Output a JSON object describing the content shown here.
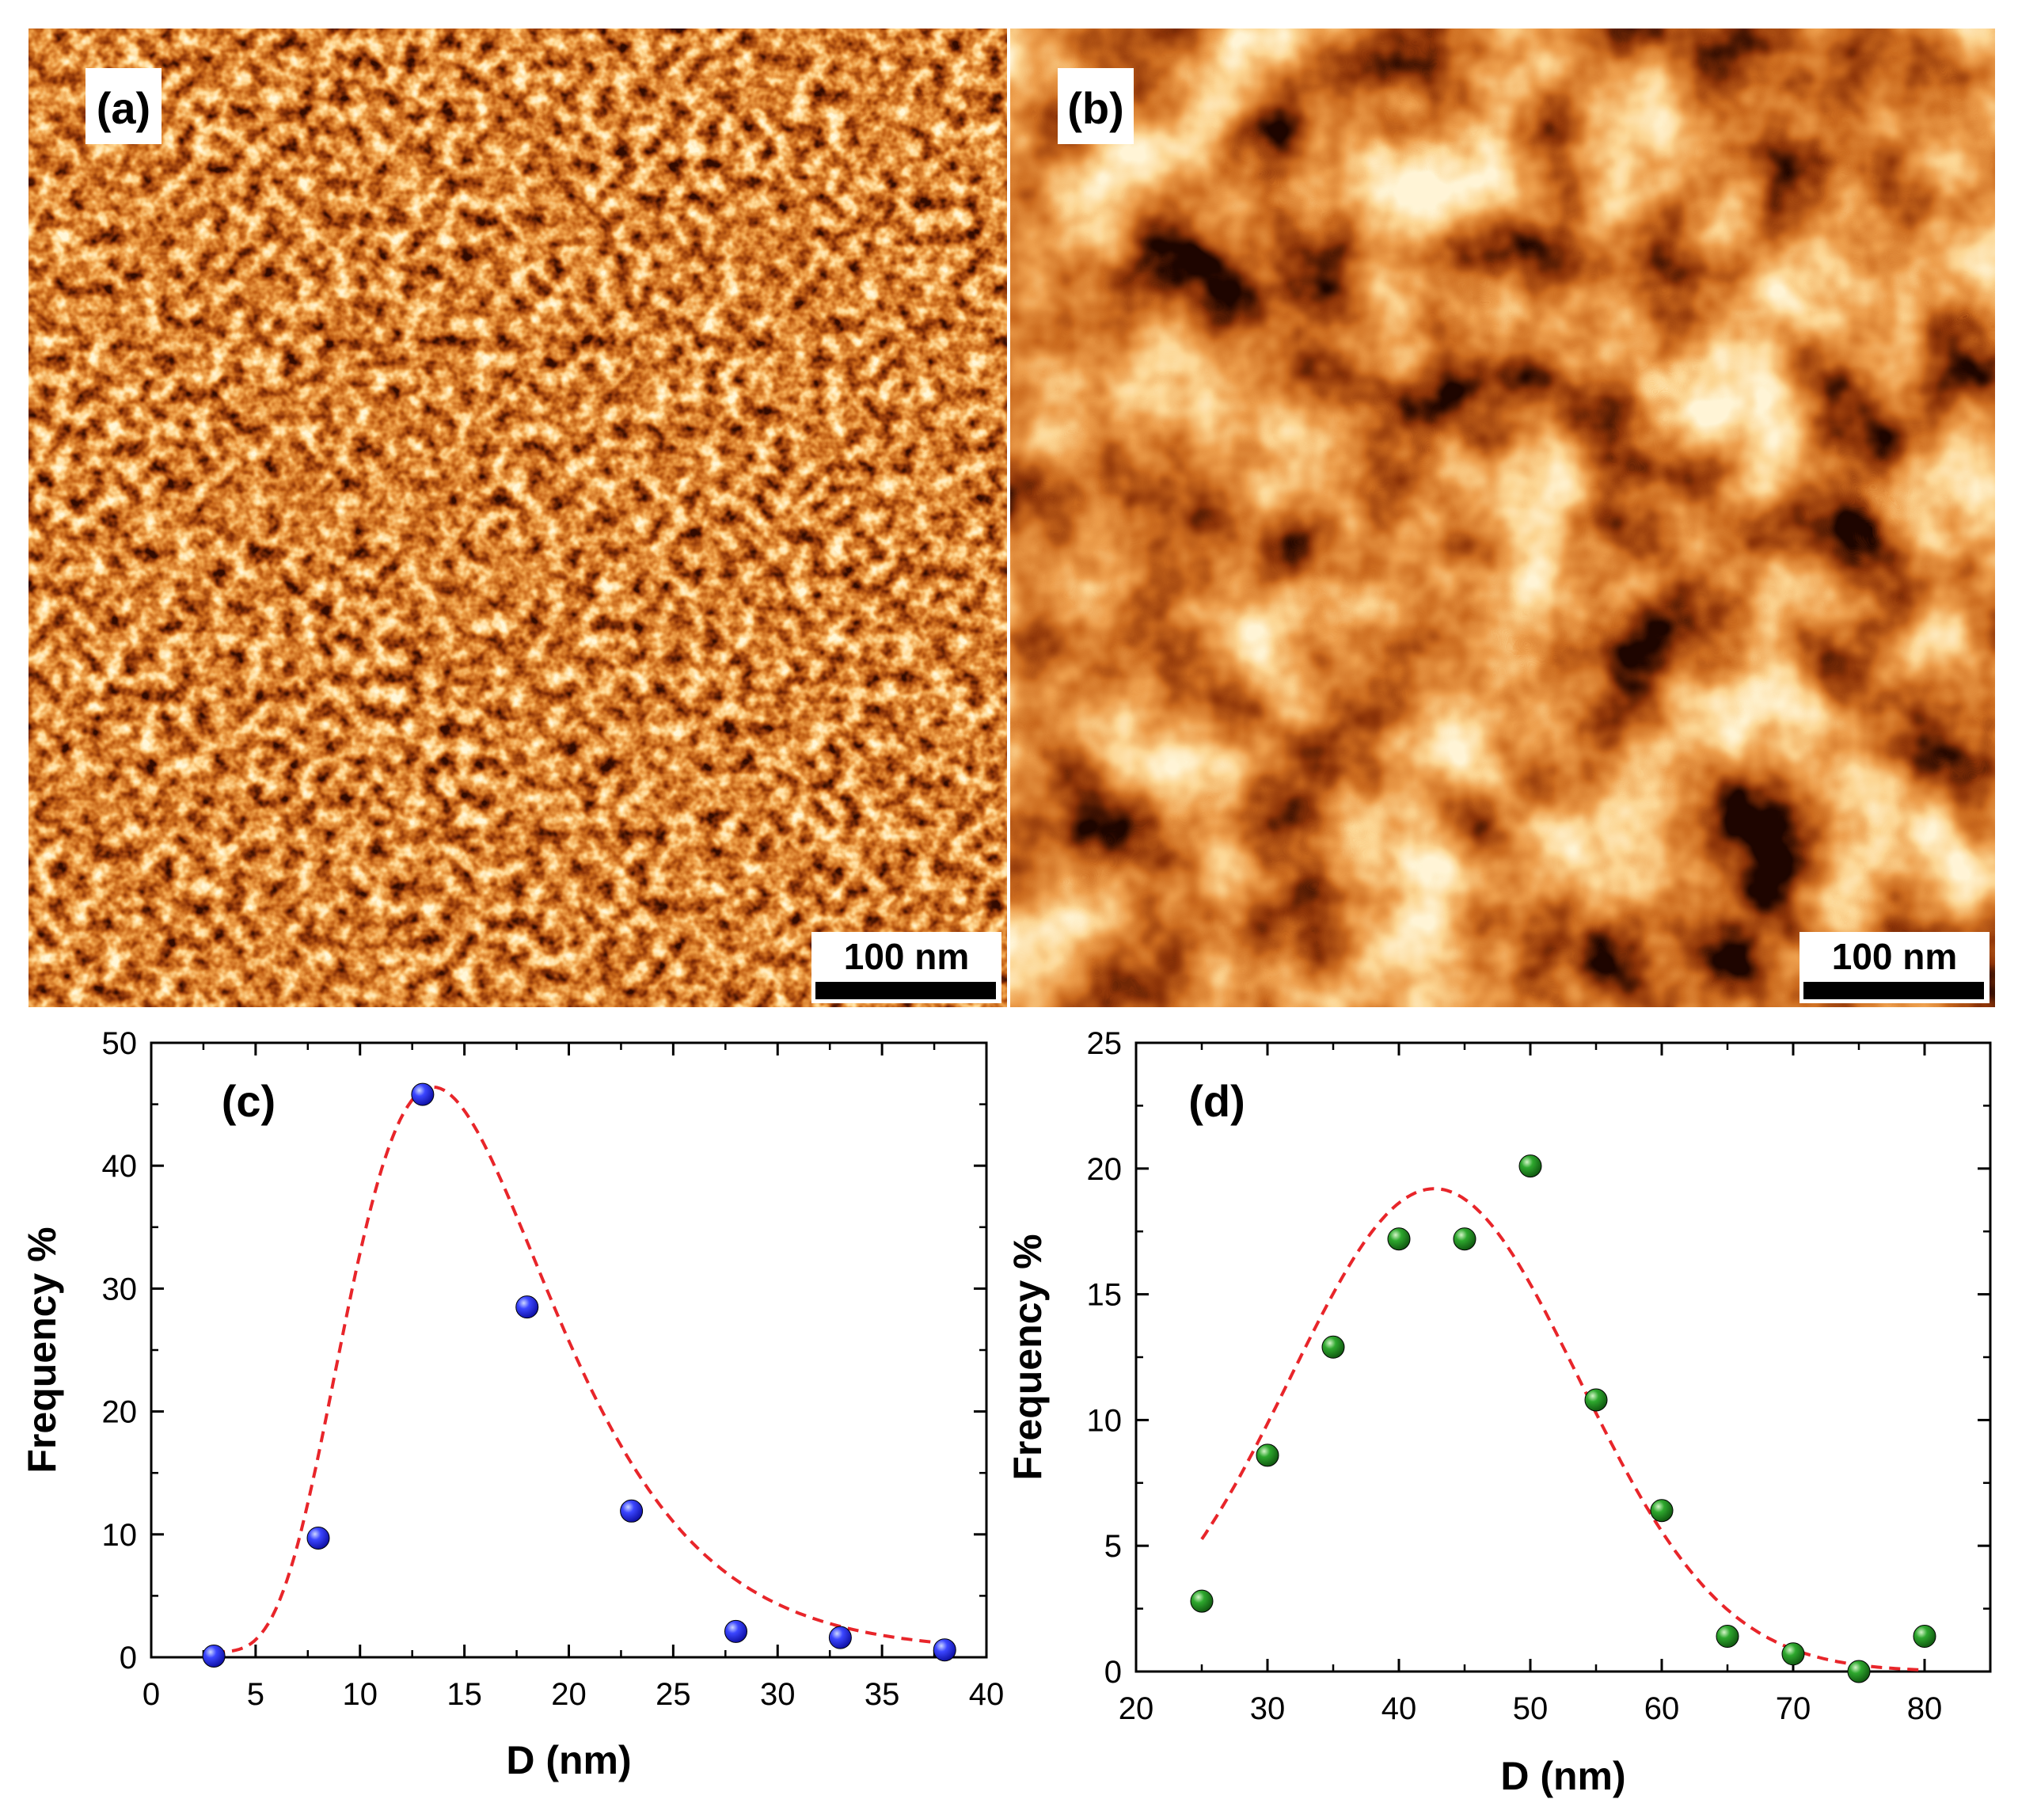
{
  "panels": {
    "a": {
      "label": "(a)",
      "scale_bar": "100 nm"
    },
    "b": {
      "label": "(b)",
      "scale_bar": "100 nm"
    }
  },
  "colors": {
    "afm_dark": "#4a0f02",
    "afm_mid": "#c56a24",
    "afm_light": "#fff2cc",
    "fit_line": "#e8252a",
    "points_c": "#1a1aff",
    "points_d": "#1e8c1e"
  },
  "chart_data": [
    {
      "id": "c",
      "type": "scatter",
      "label": "(c)",
      "xlabel": "D (nm)",
      "ylabel": "Frequency %",
      "xlim": [
        0,
        40
      ],
      "ylim": [
        0,
        50
      ],
      "xticks": [
        0,
        5,
        10,
        15,
        20,
        25,
        30,
        35,
        40
      ],
      "yticks": [
        0,
        10,
        20,
        30,
        40,
        50
      ],
      "points": {
        "x": [
          3,
          8,
          13,
          18,
          23,
          28,
          33,
          38
        ],
        "y": [
          0.1,
          9.7,
          45.8,
          28.5,
          11.9,
          2.1,
          1.6,
          0.6
        ]
      },
      "fit": {
        "type": "lognormal",
        "A": 46.0,
        "xc": 13.5,
        "w": 0.36,
        "y0": 0.4,
        "x_from": 3,
        "x_to": 38,
        "style": "dashed"
      }
    },
    {
      "id": "d",
      "type": "scatter",
      "label": "(d)",
      "xlabel": "D (nm)",
      "ylabel": "Frequency %",
      "xlim": [
        20,
        85
      ],
      "ylim": [
        0,
        25
      ],
      "xticks": [
        20,
        30,
        40,
        50,
        60,
        70,
        80
      ],
      "yticks": [
        0,
        5,
        10,
        15,
        20,
        25
      ],
      "points": {
        "x": [
          25,
          30,
          35,
          40,
          45,
          50,
          55,
          60,
          65,
          70,
          75,
          80
        ],
        "y": [
          2.8,
          8.6,
          12.9,
          17.2,
          17.2,
          20.1,
          10.8,
          6.4,
          1.4,
          0.7,
          0.0,
          1.4
        ]
      },
      "fit": {
        "type": "gaussian",
        "A": 19.2,
        "xc": 42.7,
        "sigma": 11.0,
        "y0": 0,
        "x_from": 25,
        "x_to": 80,
        "style": "dashed"
      }
    }
  ]
}
